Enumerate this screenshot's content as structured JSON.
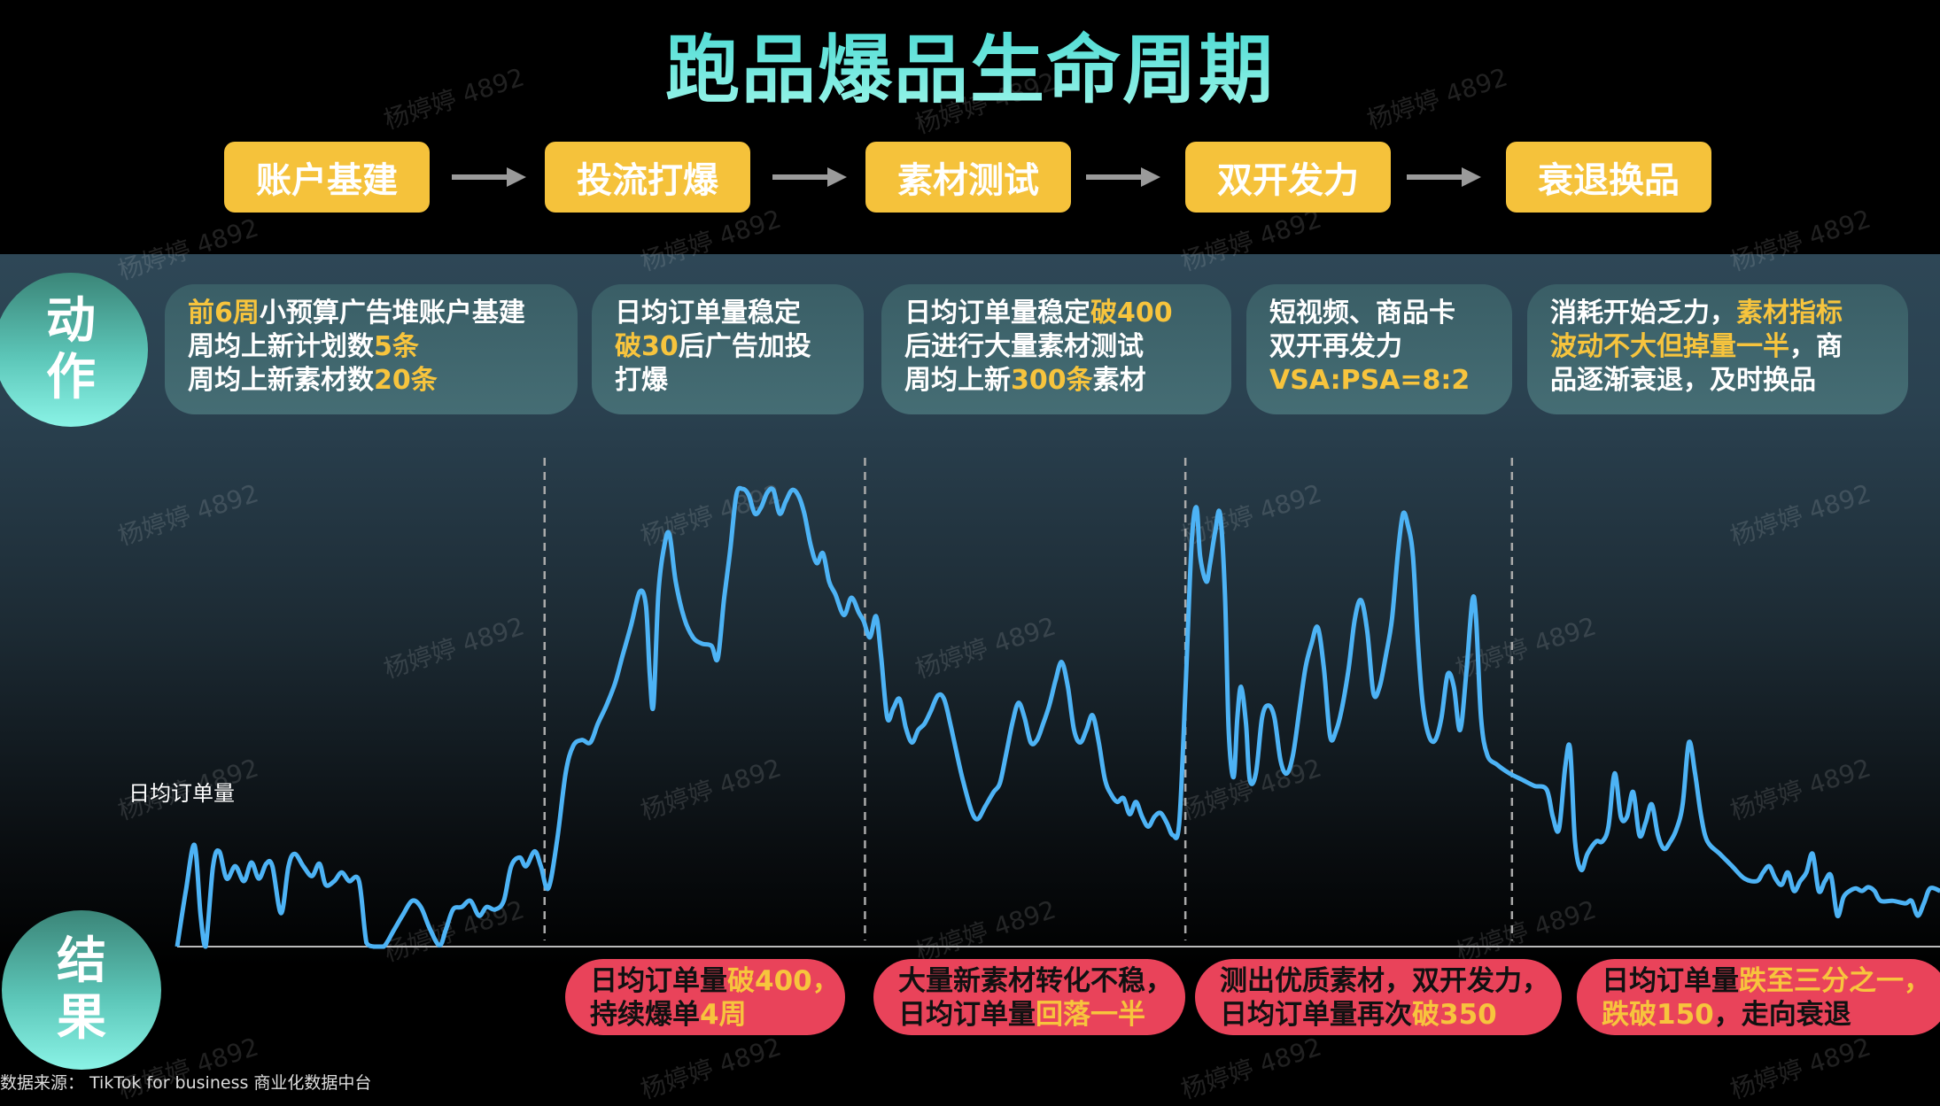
{
  "title": "跑品爆品生命周期",
  "phases": [
    "账户基建",
    "投流打爆",
    "素材测试",
    "双开发力",
    "衰退换品"
  ],
  "action_label": [
    "动",
    "作"
  ],
  "result_label": [
    "结",
    "果"
  ],
  "actions": [
    [
      [
        {
          "t": "前6周",
          "hl": true
        },
        {
          "t": "小预算广告堆账户基建"
        }
      ],
      [
        {
          "t": "周均上新计划数"
        },
        {
          "t": "5条",
          "hl": true
        }
      ],
      [
        {
          "t": "周均上新素材数"
        },
        {
          "t": "20条",
          "hl": true
        }
      ]
    ],
    [
      [
        {
          "t": "日均订单量稳定"
        }
      ],
      [
        {
          "t": "破30",
          "hl": true
        },
        {
          "t": "后广告加投"
        }
      ],
      [
        {
          "t": "打爆"
        }
      ]
    ],
    [
      [
        {
          "t": "日均订单量稳定"
        },
        {
          "t": "破400",
          "hl": true
        }
      ],
      [
        {
          "t": "后进行大量素材测试"
        }
      ],
      [
        {
          "t": "周均上新"
        },
        {
          "t": "300条",
          "hl": true
        },
        {
          "t": "素材"
        }
      ]
    ],
    [
      [
        {
          "t": "短视频、商品卡"
        }
      ],
      [
        {
          "t": "双开再发力"
        }
      ],
      [
        {
          "t": "VSA:PSA=8:2",
          "hl": true
        }
      ]
    ],
    [
      [
        {
          "t": "消耗开始乏力，"
        },
        {
          "t": "素材指标",
          "hl": true
        }
      ],
      [
        {
          "t": "波动不大但掉量一半",
          "hl": true
        },
        {
          "t": "，商"
        }
      ],
      [
        {
          "t": "品逐渐衰退，及时换品"
        }
      ]
    ]
  ],
  "results": [
    [
      [
        {
          "t": "日均订单量"
        },
        {
          "t": "破400，",
          "hl": true
        }
      ],
      [
        {
          "t": "持续爆单"
        },
        {
          "t": "4周",
          "hl": true
        }
      ]
    ],
    [
      [
        {
          "t": "大量新素材转化不稳，"
        }
      ],
      [
        {
          "t": "日均订单量"
        },
        {
          "t": "回落一半",
          "hl": true
        }
      ]
    ],
    [
      [
        {
          "t": "测出优质素材，双开发力，"
        }
      ],
      [
        {
          "t": "日均订单量再次"
        },
        {
          "t": "破350",
          "hl": true
        }
      ]
    ],
    [
      [
        {
          "t": "日均订单量"
        },
        {
          "t": "跌至三分之一，",
          "hl": true
        }
      ],
      [
        {
          "t": "跌破150",
          "hl": true
        },
        {
          "t": "，走向衰退"
        }
      ]
    ]
  ],
  "source": "数据来源： TikTok for business 商业化数据中台",
  "watermark": "杨婷婷 4892",
  "colors": {
    "accent": "#f5c23b",
    "line": "#4db3f5",
    "result": "#e9435a",
    "highlight": "#f7c43d"
  },
  "chart_data": {
    "type": "line",
    "title": "",
    "ylabel": "日均订单量",
    "xlabel": "",
    "xlim": [
      0,
      1425
    ],
    "ylim": [
      0,
      400
    ],
    "grid": false,
    "phase_boundaries": [
      297,
      556,
      815,
      1079
    ],
    "series": [
      {
        "name": "日均订单量",
        "points": [
          [
            0,
            0
          ],
          [
            7,
            45
          ],
          [
            14,
            82
          ],
          [
            19,
            25
          ],
          [
            23,
            0
          ],
          [
            29,
            65
          ],
          [
            34,
            77
          ],
          [
            40,
            55
          ],
          [
            47,
            65
          ],
          [
            54,
            53
          ],
          [
            60,
            68
          ],
          [
            66,
            55
          ],
          [
            72,
            67
          ],
          [
            77,
            65
          ],
          [
            84,
            27
          ],
          [
            90,
            65
          ],
          [
            95,
            75
          ],
          [
            102,
            65
          ],
          [
            109,
            57
          ],
          [
            115,
            67
          ],
          [
            120,
            50
          ],
          [
            127,
            53
          ],
          [
            133,
            60
          ],
          [
            139,
            53
          ],
          [
            147,
            53
          ],
          [
            153,
            3
          ],
          [
            159,
            0
          ],
          [
            167,
            0
          ],
          [
            175,
            13
          ],
          [
            182,
            25
          ],
          [
            190,
            37
          ],
          [
            197,
            32
          ],
          [
            204,
            15
          ],
          [
            212,
            1
          ],
          [
            217,
            13
          ],
          [
            223,
            30
          ],
          [
            230,
            32
          ],
          [
            237,
            37
          ],
          [
            244,
            25
          ],
          [
            250,
            32
          ],
          [
            257,
            30
          ],
          [
            264,
            37
          ],
          [
            270,
            65
          ],
          [
            277,
            72
          ],
          [
            282,
            65
          ],
          [
            289,
            77
          ],
          [
            294,
            65
          ],
          [
            300,
            47
          ],
          [
            307,
            85
          ],
          [
            314,
            140
          ],
          [
            320,
            162
          ],
          [
            327,
            167
          ],
          [
            334,
            165
          ],
          [
            340,
            180
          ],
          [
            347,
            195
          ],
          [
            354,
            213
          ],
          [
            360,
            235
          ],
          [
            367,
            260
          ],
          [
            374,
            287
          ],
          [
            379,
            275
          ],
          [
            382,
            220
          ],
          [
            385,
            195
          ],
          [
            389,
            285
          ],
          [
            394,
            325
          ],
          [
            398,
            333
          ],
          [
            403,
            295
          ],
          [
            410,
            265
          ],
          [
            417,
            250
          ],
          [
            424,
            245
          ],
          [
            432,
            243
          ],
          [
            437,
            233
          ],
          [
            442,
            280
          ],
          [
            447,
            320
          ],
          [
            452,
            365
          ],
          [
            457,
            370
          ],
          [
            462,
            365
          ],
          [
            467,
            350
          ],
          [
            472,
            355
          ],
          [
            477,
            367
          ],
          [
            482,
            369
          ],
          [
            487,
            350
          ],
          [
            492,
            360
          ],
          [
            497,
            369
          ],
          [
            502,
            365
          ],
          [
            507,
            350
          ],
          [
            512,
            325
          ],
          [
            517,
            310
          ],
          [
            522,
            318
          ],
          [
            527,
            295
          ],
          [
            532,
            285
          ],
          [
            539,
            268
          ],
          [
            545,
            282
          ],
          [
            551,
            270
          ],
          [
            555,
            263
          ],
          [
            560,
            250
          ],
          [
            565,
            267
          ],
          [
            569,
            235
          ],
          [
            574,
            185
          ],
          [
            579,
            193
          ],
          [
            584,
            200
          ],
          [
            589,
            177
          ],
          [
            594,
            165
          ],
          [
            599,
            175
          ],
          [
            604,
            180
          ],
          [
            609,
            190
          ],
          [
            615,
            203
          ],
          [
            620,
            200
          ],
          [
            625,
            180
          ],
          [
            630,
            157
          ],
          [
            635,
            135
          ],
          [
            642,
            110
          ],
          [
            647,
            103
          ],
          [
            653,
            113
          ],
          [
            660,
            125
          ],
          [
            665,
            132
          ],
          [
            670,
            155
          ],
          [
            675,
            180
          ],
          [
            680,
            197
          ],
          [
            685,
            185
          ],
          [
            690,
            165
          ],
          [
            695,
            167
          ],
          [
            700,
            180
          ],
          [
            705,
            195
          ],
          [
            710,
            215
          ],
          [
            715,
            230
          ],
          [
            720,
            210
          ],
          [
            725,
            175
          ],
          [
            730,
            165
          ],
          [
            735,
            175
          ],
          [
            740,
            187
          ],
          [
            745,
            165
          ],
          [
            750,
            135
          ],
          [
            755,
            123
          ],
          [
            760,
            117
          ],
          [
            765,
            120
          ],
          [
            770,
            107
          ],
          [
            775,
            117
          ],
          [
            780,
            105
          ],
          [
            785,
            97
          ],
          [
            790,
            105
          ],
          [
            795,
            108
          ],
          [
            800,
            100
          ],
          [
            805,
            90
          ],
          [
            810,
            100
          ],
          [
            815,
            205
          ],
          [
            820,
            325
          ],
          [
            824,
            355
          ],
          [
            827,
            315
          ],
          [
            832,
            295
          ],
          [
            835,
            310
          ],
          [
            839,
            335
          ],
          [
            843,
            350
          ],
          [
            847,
            285
          ],
          [
            850,
            175
          ],
          [
            854,
            137
          ],
          [
            857,
            185
          ],
          [
            860,
            210
          ],
          [
            864,
            180
          ],
          [
            867,
            135
          ],
          [
            872,
            140
          ],
          [
            877,
            185
          ],
          [
            882,
            195
          ],
          [
            887,
            185
          ],
          [
            892,
            150
          ],
          [
            897,
            140
          ],
          [
            902,
            155
          ],
          [
            907,
            190
          ],
          [
            912,
            225
          ],
          [
            917,
            245
          ],
          [
            922,
            258
          ],
          [
            927,
            225
          ],
          [
            932,
            170
          ],
          [
            937,
            175
          ],
          [
            942,
            195
          ],
          [
            947,
            225
          ],
          [
            952,
            265
          ],
          [
            957,
            280
          ],
          [
            962,
            255
          ],
          [
            967,
            205
          ],
          [
            972,
            210
          ],
          [
            977,
            235
          ],
          [
            982,
            265
          ],
          [
            987,
            320
          ],
          [
            991,
            350
          ],
          [
            995,
            340
          ],
          [
            999,
            315
          ],
          [
            1003,
            245
          ],
          [
            1007,
            195
          ],
          [
            1012,
            170
          ],
          [
            1017,
            167
          ],
          [
            1022,
            185
          ],
          [
            1027,
            220
          ],
          [
            1032,
            210
          ],
          [
            1037,
            175
          ],
          [
            1042,
            220
          ],
          [
            1047,
            280
          ],
          [
            1050,
            265
          ],
          [
            1054,
            185
          ],
          [
            1059,
            155
          ],
          [
            1067,
            147
          ],
          [
            1077,
            140
          ],
          [
            1087,
            135
          ],
          [
            1097,
            130
          ],
          [
            1107,
            127
          ],
          [
            1112,
            105
          ],
          [
            1117,
            95
          ],
          [
            1122,
            145
          ],
          [
            1126,
            160
          ],
          [
            1130,
            85
          ],
          [
            1135,
            62
          ],
          [
            1140,
            75
          ],
          [
            1147,
            85
          ],
          [
            1152,
            85
          ],
          [
            1157,
            97
          ],
          [
            1162,
            140
          ],
          [
            1167,
            105
          ],
          [
            1172,
            105
          ],
          [
            1177,
            125
          ],
          [
            1182,
            90
          ],
          [
            1187,
            100
          ],
          [
            1192,
            115
          ],
          [
            1197,
            90
          ],
          [
            1202,
            79
          ],
          [
            1207,
            85
          ],
          [
            1212,
            95
          ],
          [
            1217,
            115
          ],
          [
            1222,
            165
          ],
          [
            1227,
            140
          ],
          [
            1232,
            105
          ],
          [
            1237,
            85
          ],
          [
            1247,
            75
          ],
          [
            1257,
            65
          ],
          [
            1267,
            55
          ],
          [
            1277,
            53
          ],
          [
            1282,
            60
          ],
          [
            1287,
            65
          ],
          [
            1292,
            55
          ],
          [
            1297,
            50
          ],
          [
            1302,
            60
          ],
          [
            1307,
            45
          ],
          [
            1312,
            53
          ],
          [
            1317,
            60
          ],
          [
            1322,
            75
          ],
          [
            1327,
            45
          ],
          [
            1332,
            53
          ],
          [
            1337,
            57
          ],
          [
            1342,
            25
          ],
          [
            1347,
            40
          ],
          [
            1352,
            45
          ],
          [
            1357,
            47
          ],
          [
            1362,
            45
          ],
          [
            1367,
            48
          ],
          [
            1372,
            45
          ],
          [
            1377,
            37
          ],
          [
            1387,
            37
          ],
          [
            1397,
            35
          ],
          [
            1402,
            37
          ],
          [
            1407,
            25
          ],
          [
            1412,
            35
          ],
          [
            1417,
            47
          ],
          [
            1425,
            45
          ]
        ]
      }
    ]
  }
}
